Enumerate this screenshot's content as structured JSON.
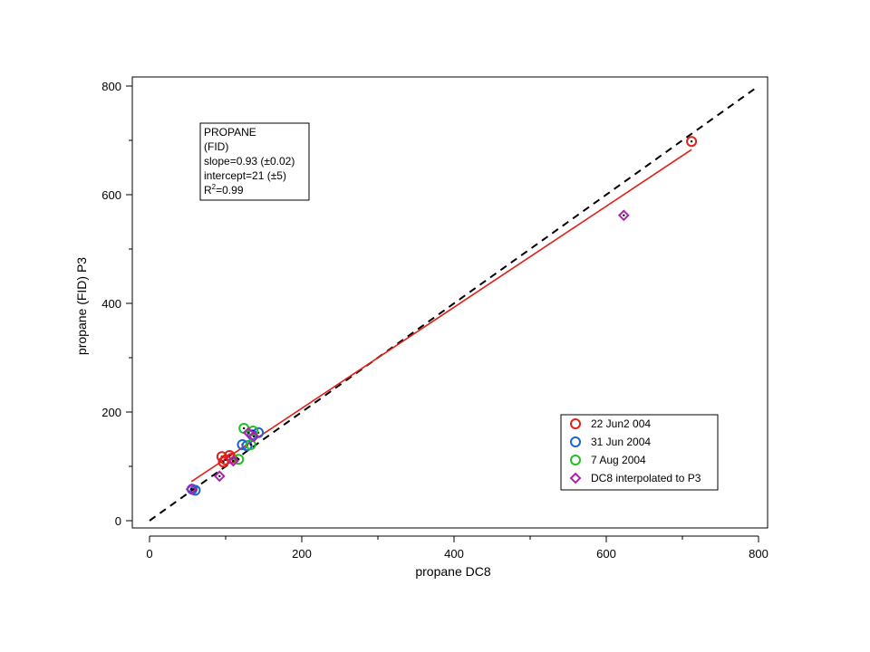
{
  "chart_data": {
    "type": "scatter",
    "xlabel": "propane DC8",
    "ylabel": "propane (FID) P3",
    "xlim": [
      0,
      800
    ],
    "ylim": [
      0,
      800
    ],
    "xticks": [
      "0",
      "200",
      "400",
      "600",
      "800"
    ],
    "yticks": [
      "0",
      "200",
      "400",
      "600",
      "800"
    ],
    "grid": false,
    "legend_position": "bottom-right",
    "annotation": {
      "lines": [
        "PROPANE",
        "(FID)",
        "slope=0.93 (±0.02)",
        "intercept=21 (±5)"
      ],
      "r2_base": "R",
      "r2_sup": "2",
      "r2_value": "=0.99"
    },
    "one_to_one_line": {
      "x": [
        0,
        800
      ],
      "y": [
        0,
        800
      ],
      "color": "#000000",
      "style": "dashed"
    },
    "fit_line": {
      "x": [
        55,
        712
      ],
      "y": [
        72,
        683
      ],
      "color": "#e0201a"
    },
    "series": [
      {
        "name": "22 Jun2 004",
        "marker": "circle",
        "color": "#e0201a",
        "points": [
          [
            95,
            118
          ],
          [
            97,
            108
          ],
          [
            100,
            112
          ],
          [
            105,
            120
          ],
          [
            108,
            115
          ],
          [
            712,
            698
          ]
        ]
      },
      {
        "name": "31 Jun 2004",
        "marker": "circle",
        "color": "#2060d0",
        "points": [
          [
            56,
            58
          ],
          [
            60,
            56
          ],
          [
            122,
            140
          ],
          [
            128,
            138
          ],
          [
            135,
            158
          ],
          [
            143,
            162
          ]
        ]
      },
      {
        "name": "7 Aug 2004",
        "marker": "circle",
        "color": "#20c020",
        "points": [
          [
            117,
            113
          ],
          [
            124,
            170
          ],
          [
            133,
            140
          ],
          [
            136,
            165
          ]
        ]
      },
      {
        "name": "DC8 interpolated to P3",
        "marker": "diamond",
        "color": "#b020b0",
        "points": [
          [
            55,
            58
          ],
          [
            92,
            82
          ],
          [
            110,
            110
          ],
          [
            130,
            162
          ],
          [
            137,
            155
          ],
          [
            623,
            562
          ]
        ]
      }
    ]
  }
}
